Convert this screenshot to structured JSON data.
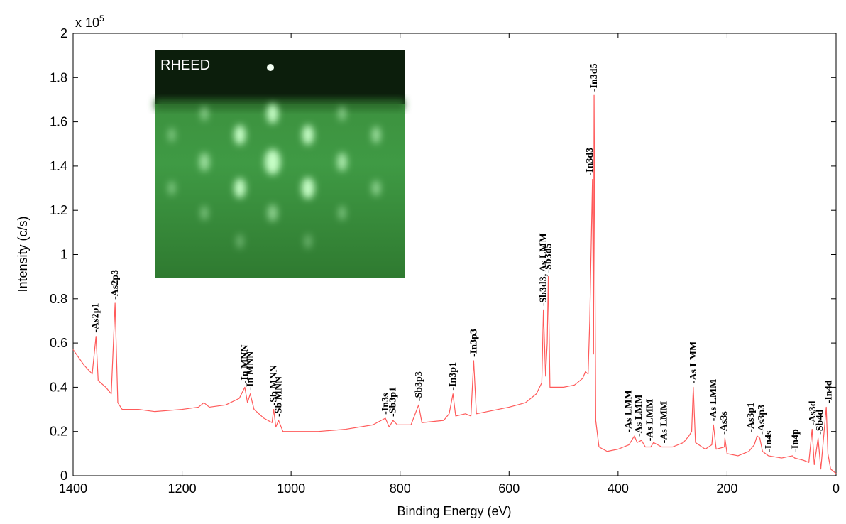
{
  "chart_data": {
    "type": "line",
    "x_label": "Binding Energy (eV)",
    "y_label": "Intensity (c/s)",
    "y_scale_label": "x 10",
    "y_scale_exponent": "5",
    "inset_label": "RHEED",
    "color": "#ff5a5a",
    "xlim": [
      1400,
      0
    ],
    "xticks": [
      1400,
      1200,
      1000,
      800,
      600,
      400,
      200,
      0
    ],
    "ylim": [
      0,
      2
    ],
    "yticks": [
      0,
      0.2,
      0.4,
      0.6,
      0.8,
      1,
      1.2,
      1.4,
      1.6,
      1.8,
      2
    ],
    "x": [
      1400,
      1380,
      1365,
      1358,
      1354,
      1340,
      1330,
      1323,
      1318,
      1310,
      1280,
      1250,
      1200,
      1170,
      1160,
      1150,
      1120,
      1095,
      1085,
      1080,
      1075,
      1068,
      1050,
      1035,
      1032,
      1028,
      1023,
      1015,
      1000,
      950,
      900,
      850,
      827,
      820,
      813,
      805,
      780,
      766,
      760,
      720,
      710,
      703,
      698,
      680,
      670,
      665,
      660,
      640,
      600,
      570,
      550,
      540,
      537,
      533,
      530,
      528,
      525,
      500,
      480,
      465,
      460,
      455,
      452,
      447,
      445,
      444,
      441,
      435,
      420,
      400,
      380,
      370,
      365,
      357,
      350,
      340,
      335,
      320,
      300,
      280,
      270,
      265,
      262,
      258,
      240,
      228,
      225,
      220,
      205,
      204,
      200,
      180,
      160,
      150,
      145,
      140,
      135,
      124,
      100,
      80,
      76,
      60,
      50,
      44,
      40,
      33,
      28,
      18,
      15,
      10,
      5,
      0
    ],
    "values": [
      0.57,
      0.5,
      0.46,
      0.63,
      0.43,
      0.4,
      0.37,
      0.78,
      0.33,
      0.3,
      0.3,
      0.29,
      0.3,
      0.31,
      0.33,
      0.31,
      0.32,
      0.35,
      0.4,
      0.33,
      0.37,
      0.3,
      0.26,
      0.24,
      0.3,
      0.22,
      0.25,
      0.2,
      0.2,
      0.2,
      0.21,
      0.23,
      0.26,
      0.22,
      0.25,
      0.23,
      0.23,
      0.32,
      0.24,
      0.25,
      0.28,
      0.37,
      0.27,
      0.28,
      0.27,
      0.52,
      0.28,
      0.29,
      0.31,
      0.33,
      0.37,
      0.42,
      0.75,
      0.45,
      0.6,
      0.9,
      0.4,
      0.4,
      0.41,
      0.44,
      0.47,
      0.46,
      0.7,
      1.34,
      0.55,
      1.72,
      0.25,
      0.13,
      0.11,
      0.12,
      0.14,
      0.18,
      0.15,
      0.16,
      0.13,
      0.13,
      0.15,
      0.13,
      0.13,
      0.15,
      0.18,
      0.2,
      0.4,
      0.15,
      0.12,
      0.14,
      0.23,
      0.12,
      0.13,
      0.17,
      0.1,
      0.09,
      0.11,
      0.14,
      0.18,
      0.17,
      0.11,
      0.09,
      0.08,
      0.09,
      0.08,
      0.07,
      0.06,
      0.21,
      0.05,
      0.17,
      0.03,
      0.31,
      0.1,
      0.03,
      0.02,
      0.01
    ],
    "annotations": [
      {
        "text": "-As2p1",
        "x": 1359,
        "y": 0.64
      },
      {
        "text": "-As2p3",
        "x": 1323,
        "y": 0.79
      },
      {
        "text": "-In MNN",
        "x": 1085,
        "y": 0.41
      },
      {
        "text": "-In MNN",
        "x": 1075,
        "y": 0.38
      },
      {
        "text": "-Sb MNN",
        "x": 1032,
        "y": 0.31
      },
      {
        "text": "-Sb MNN",
        "x": 1023,
        "y": 0.26
      },
      {
        "text": "-In3s",
        "x": 827,
        "y": 0.27
      },
      {
        "text": "-Sb3p1",
        "x": 813,
        "y": 0.26
      },
      {
        "text": "-Sb3p3",
        "x": 766,
        "y": 0.33
      },
      {
        "text": "-In3p1",
        "x": 703,
        "y": 0.38
      },
      {
        "text": "-In3p3",
        "x": 665,
        "y": 0.53
      },
      {
        "text": "-Sb3d3, As LMM",
        "x": 537,
        "y": 0.76
      },
      {
        "text": "-Sb3d5",
        "x": 528,
        "y": 0.91
      },
      {
        "text": "-In3d3",
        "x": 452,
        "y": 1.35
      },
      {
        "text": "-In3d5",
        "x": 444,
        "y": 1.73
      },
      {
        "text": "-As LMM",
        "x": 381,
        "y": 0.19
      },
      {
        "text": "-As LMM",
        "x": 362,
        "y": 0.17
      },
      {
        "text": "-As LMM",
        "x": 342,
        "y": 0.15
      },
      {
        "text": "-As LMM",
        "x": 316,
        "y": 0.14
      },
      {
        "text": "-As LMM",
        "x": 262,
        "y": 0.41
      },
      {
        "text": "-As LMM",
        "x": 225,
        "y": 0.24
      },
      {
        "text": "-As3s",
        "x": 206,
        "y": 0.18
      },
      {
        "text": "-As3p1",
        "x": 156,
        "y": 0.19
      },
      {
        "text": "-As3p3",
        "x": 137,
        "y": 0.18
      },
      {
        "text": "-In4s",
        "x": 124,
        "y": 0.1
      },
      {
        "text": "-In4p",
        "x": 75,
        "y": 0.1
      },
      {
        "text": "-As3d",
        "x": 43,
        "y": 0.22
      },
      {
        "text": "-Sb4d",
        "x": 30,
        "y": 0.18
      },
      {
        "text": "-In4d",
        "x": 14,
        "y": 0.32
      }
    ]
  }
}
